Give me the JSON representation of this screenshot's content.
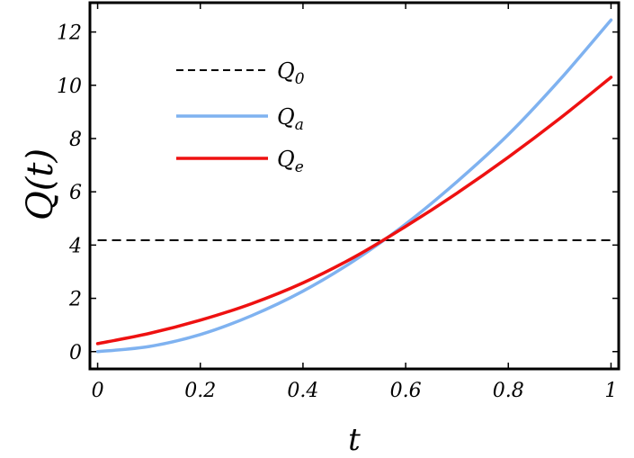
{
  "chart_data": {
    "type": "line",
    "title": "",
    "xlabel": "t",
    "ylabel": "Q(t)",
    "xlim": [
      -0.015,
      1.015
    ],
    "ylim": [
      -0.65,
      13.1
    ],
    "x_ticks": [
      0,
      0.2,
      0.4,
      0.6,
      0.8,
      1
    ],
    "x_tick_labels": [
      "0",
      "0.2",
      "0.4",
      "0.6",
      "0.8",
      "1"
    ],
    "y_ticks": [
      0,
      2,
      4,
      6,
      8,
      10,
      12
    ],
    "y_tick_labels": [
      "0",
      "2",
      "4",
      "6",
      "8",
      "10",
      "12"
    ],
    "grid": false,
    "legend_position": "top-left",
    "series": [
      {
        "name": "Q0",
        "label_main": "Q",
        "label_sub": "0",
        "color": "#000000",
        "dash": "dashed",
        "x": [
          0,
          1
        ],
        "y": [
          4.18,
          4.18
        ]
      },
      {
        "name": "Qa",
        "label_main": "Q",
        "label_sub": "a",
        "color": "#7fb2f0",
        "dash": "solid",
        "x": [
          0,
          0.1,
          0.2,
          0.3,
          0.4,
          0.5,
          0.6,
          0.7,
          0.8,
          0.9,
          1.0
        ],
        "y": [
          0,
          0.19,
          0.64,
          1.35,
          2.27,
          3.42,
          4.79,
          6.38,
          8.15,
          10.2,
          12.45
        ]
      },
      {
        "name": "Qe",
        "label_main": "Q",
        "label_sub": "e",
        "color": "#ee1111",
        "dash": "solid",
        "x": [
          0,
          0.1,
          0.2,
          0.3,
          0.4,
          0.5,
          0.6,
          0.7,
          0.8,
          0.9,
          1.0
        ],
        "y": [
          0.3,
          0.68,
          1.18,
          1.8,
          2.58,
          3.55,
          4.7,
          5.95,
          7.3,
          8.75,
          10.3
        ]
      }
    ]
  }
}
